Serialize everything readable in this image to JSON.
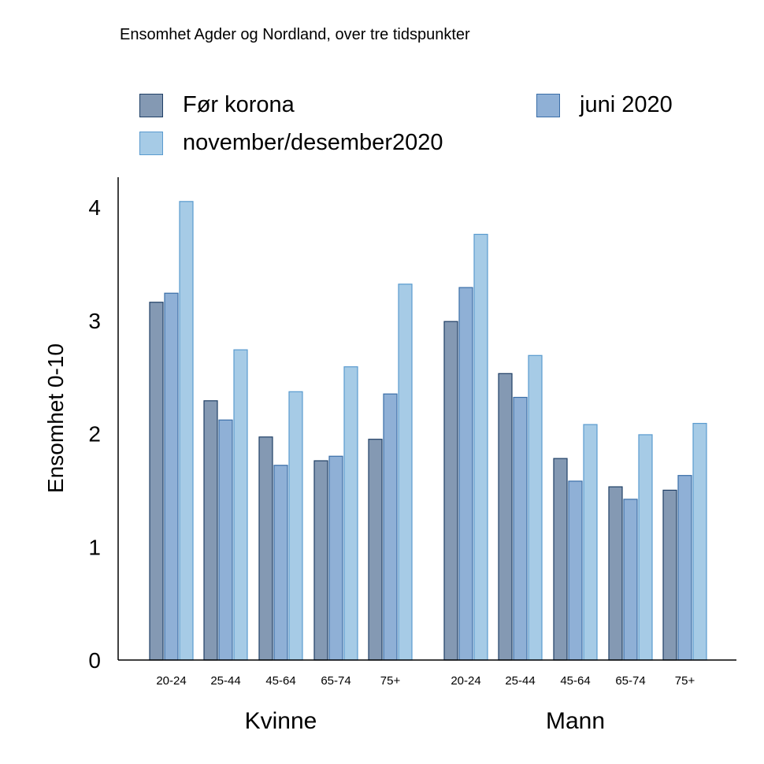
{
  "chart_data": {
    "type": "bar",
    "title": "Ensomhet Agder og Nordland, over tre tidspunkter",
    "ylabel": "Ensomhet 0-10",
    "xlabel": "",
    "ylim": [
      0,
      4.3
    ],
    "yticks": [
      "0",
      "1",
      "2",
      "3",
      "4"
    ],
    "ytick_values": [
      0,
      1,
      2,
      3,
      4
    ],
    "grid": false,
    "legend_placement": "top",
    "groups": [
      {
        "name": "Kvinne",
        "categories": [
          "20-24",
          "25-44",
          "45-64",
          "65-74",
          "75+"
        ]
      },
      {
        "name": "Mann",
        "categories": [
          "20-24",
          "25-44",
          "45-64",
          "65-74",
          "75+"
        ]
      }
    ],
    "series": [
      {
        "name": "Før korona",
        "fill": "#8499b3",
        "stroke": "#1f3f66",
        "values": [
          3.16,
          2.29,
          1.97,
          1.76,
          1.95,
          2.99,
          2.53,
          1.78,
          1.53,
          1.5
        ]
      },
      {
        "name": "juni 2020",
        "fill": "#8fb0d6",
        "stroke": "#3a6ea8",
        "values": [
          3.24,
          2.12,
          1.72,
          1.8,
          2.35,
          3.29,
          2.32,
          1.58,
          1.42,
          1.63
        ]
      },
      {
        "name": "november/desember2020",
        "fill": "#a6cbe6",
        "stroke": "#5a9bcf",
        "values": [
          4.05,
          2.74,
          2.37,
          2.59,
          3.32,
          3.76,
          2.69,
          2.08,
          1.99,
          2.09
        ]
      }
    ]
  }
}
